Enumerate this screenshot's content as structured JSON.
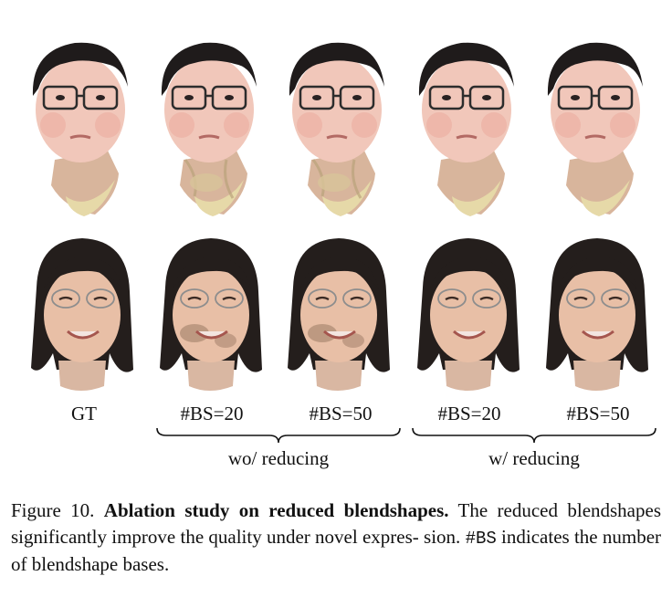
{
  "figure": {
    "columns": [
      {
        "label": "GT"
      },
      {
        "label": "#BS=20"
      },
      {
        "label": "#BS=50"
      },
      {
        "label": "#BS=20"
      },
      {
        "label": "#BS=50"
      }
    ],
    "groups": [
      {
        "label": "wo/ reducing"
      },
      {
        "label": "w/ reducing"
      }
    ]
  },
  "caption": {
    "prefix": "Figure 10.",
    "title": "Ablation study on reduced blendshapes.",
    "text1": "The reduced blendshapes significantly improve the quality under novel expres- sion.",
    "code": "#BS",
    "text2": "indicates the number of blendshape bases."
  }
}
